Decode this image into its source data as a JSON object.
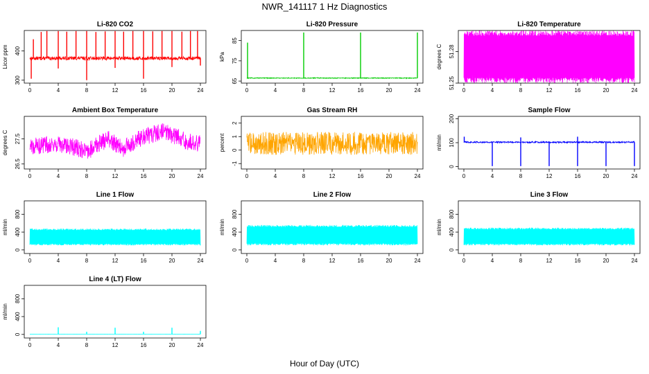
{
  "figure": {
    "title": "NWR_141117  1 Hz Diagnostics",
    "xlabel": "Hour of Day (UTC)"
  },
  "chart_data": [
    {
      "type": "line",
      "title": "Li-820 CO2",
      "ylabel": "Licor ppm",
      "color": "#ff0000",
      "x_ticks": [
        0,
        4,
        8,
        12,
        16,
        20,
        24
      ],
      "y_ticks": [
        300,
        400
      ],
      "ylim": [
        290,
        470
      ],
      "baseline": 375,
      "noise": 6,
      "spikes_up": [
        [
          0.5,
          440
        ],
        [
          1.6,
          465
        ],
        [
          2.4,
          468
        ],
        [
          4.0,
          468
        ],
        [
          5.2,
          466
        ],
        [
          6.5,
          468
        ],
        [
          8.0,
          468
        ],
        [
          9.3,
          465
        ],
        [
          10.6,
          467
        ],
        [
          12.0,
          468
        ],
        [
          13.2,
          466
        ],
        [
          14.5,
          468
        ],
        [
          16.0,
          468
        ],
        [
          17.3,
          467
        ],
        [
          18.6,
          468
        ],
        [
          20.0,
          468
        ],
        [
          21.4,
          466
        ],
        [
          22.6,
          468
        ],
        [
          23.6,
          468
        ]
      ],
      "spikes_down": [
        [
          0.2,
          305
        ],
        [
          4.0,
          340
        ],
        [
          8.0,
          300
        ],
        [
          12.0,
          342
        ],
        [
          16.0,
          305
        ],
        [
          20.0,
          345
        ],
        [
          24.0,
          350
        ]
      ],
      "x": [
        0,
        24
      ]
    },
    {
      "type": "line",
      "title": "Li-820 Pressure",
      "ylabel": "kPa",
      "color": "#00cc00",
      "x_ticks": [
        0,
        4,
        8,
        12,
        16,
        20,
        24
      ],
      "y_ticks": [
        65,
        75,
        85
      ],
      "ylim": [
        64,
        90
      ],
      "baseline": 66.5,
      "noise": 0.2,
      "spikes_up": [
        [
          0.1,
          84
        ],
        [
          8.0,
          89
        ],
        [
          16.0,
          89
        ],
        [
          24.0,
          89
        ]
      ],
      "spikes_down": [],
      "x": [
        0,
        24
      ]
    },
    {
      "type": "line",
      "title": "Li-820 Temperature",
      "ylabel": "degrees C",
      "color": "#ff00ff",
      "x_ticks": [
        0,
        4,
        8,
        12,
        16,
        20,
        24
      ],
      "y_ticks": [
        51.25,
        51.28
      ],
      "ylim": [
        51.25,
        51.3
      ],
      "band": [
        51.25,
        51.3
      ],
      "x": [
        0,
        24
      ]
    },
    {
      "type": "line",
      "title": "Ambient Box Temperature",
      "ylabel": "degrees C",
      "color": "#ff00ff",
      "x_ticks": [
        0,
        4,
        8,
        12,
        16,
        20,
        24
      ],
      "y_ticks": [
        26.5,
        27.5
      ],
      "ylim": [
        26.3,
        28.4
      ],
      "trend": [
        [
          0,
          27.2
        ],
        [
          3,
          27.3
        ],
        [
          6,
          27.2
        ],
        [
          8,
          27.0
        ],
        [
          11,
          27.5
        ],
        [
          13,
          27.1
        ],
        [
          16,
          27.6
        ],
        [
          19,
          27.8
        ],
        [
          22,
          27.4
        ],
        [
          24,
          27.3
        ]
      ],
      "noise": 0.35,
      "x": [
        0,
        24
      ]
    },
    {
      "type": "line",
      "title": "Gas Stream RH",
      "ylabel": "percent",
      "color": "#ffa500",
      "x_ticks": [
        0,
        4,
        8,
        12,
        16,
        20,
        24
      ],
      "y_ticks": [
        -1,
        0,
        1,
        2
      ],
      "ylim": [
        -1.4,
        2.5
      ],
      "baseline": 0.5,
      "noise": 0.85,
      "x": [
        0,
        24
      ]
    },
    {
      "type": "line",
      "title": "Sample Flow",
      "ylabel": "ml/min",
      "color": "#0000ff",
      "x_ticks": [
        0,
        4,
        8,
        12,
        16,
        20,
        24
      ],
      "y_ticks": [
        0,
        100,
        200
      ],
      "ylim": [
        -10,
        210
      ],
      "baseline": 102,
      "noise": 3,
      "spikes_up": [
        [
          0.05,
          125
        ],
        [
          8.0,
          122
        ],
        [
          16.0,
          125
        ]
      ],
      "spikes_down": [
        [
          4.0,
          2
        ],
        [
          8.0,
          2
        ],
        [
          12.0,
          2
        ],
        [
          16.0,
          2
        ],
        [
          20.0,
          2
        ],
        [
          24.0,
          2
        ]
      ],
      "x": [
        0,
        24
      ]
    },
    {
      "type": "line",
      "title": "Line 1 Flow",
      "ylabel": "ml/min",
      "color": "#00ffff",
      "x_ticks": [
        0,
        4,
        8,
        12,
        16,
        20,
        24
      ],
      "y_ticks": [
        0,
        400,
        800
      ],
      "ylim": [
        -80,
        1100
      ],
      "band": [
        100,
        480
      ],
      "x": [
        0,
        24
      ]
    },
    {
      "type": "line",
      "title": "Line 2 Flow",
      "ylabel": "ml/min",
      "color": "#00ffff",
      "x_ticks": [
        0,
        4,
        8,
        12,
        16,
        20,
        24
      ],
      "y_ticks": [
        0,
        400,
        800
      ],
      "ylim": [
        -80,
        1100
      ],
      "band": [
        100,
        560
      ],
      "x": [
        0,
        24
      ]
    },
    {
      "type": "line",
      "title": "Line 3 Flow",
      "ylabel": "ml/min",
      "color": "#00ffff",
      "x_ticks": [
        0,
        4,
        8,
        12,
        16,
        20,
        24
      ],
      "y_ticks": [
        0,
        400,
        800
      ],
      "ylim": [
        -80,
        1100
      ],
      "band": [
        100,
        500
      ],
      "x": [
        0,
        24
      ]
    },
    {
      "type": "line",
      "title": "Line 4 (LT) Flow",
      "ylabel": "ml/min",
      "color": "#00ffff",
      "x_ticks": [
        0,
        4,
        8,
        12,
        16,
        20,
        24
      ],
      "y_ticks": [
        0,
        400,
        800
      ],
      "ylim": [
        -80,
        1100
      ],
      "baseline": 5,
      "noise": 2,
      "spikes_up": [
        [
          4.0,
          160
        ],
        [
          8.0,
          60
        ],
        [
          12.0,
          150
        ],
        [
          16.0,
          60
        ],
        [
          20.0,
          150
        ],
        [
          24.0,
          80
        ]
      ],
      "spikes_down": [],
      "x": [
        0,
        24
      ]
    }
  ]
}
